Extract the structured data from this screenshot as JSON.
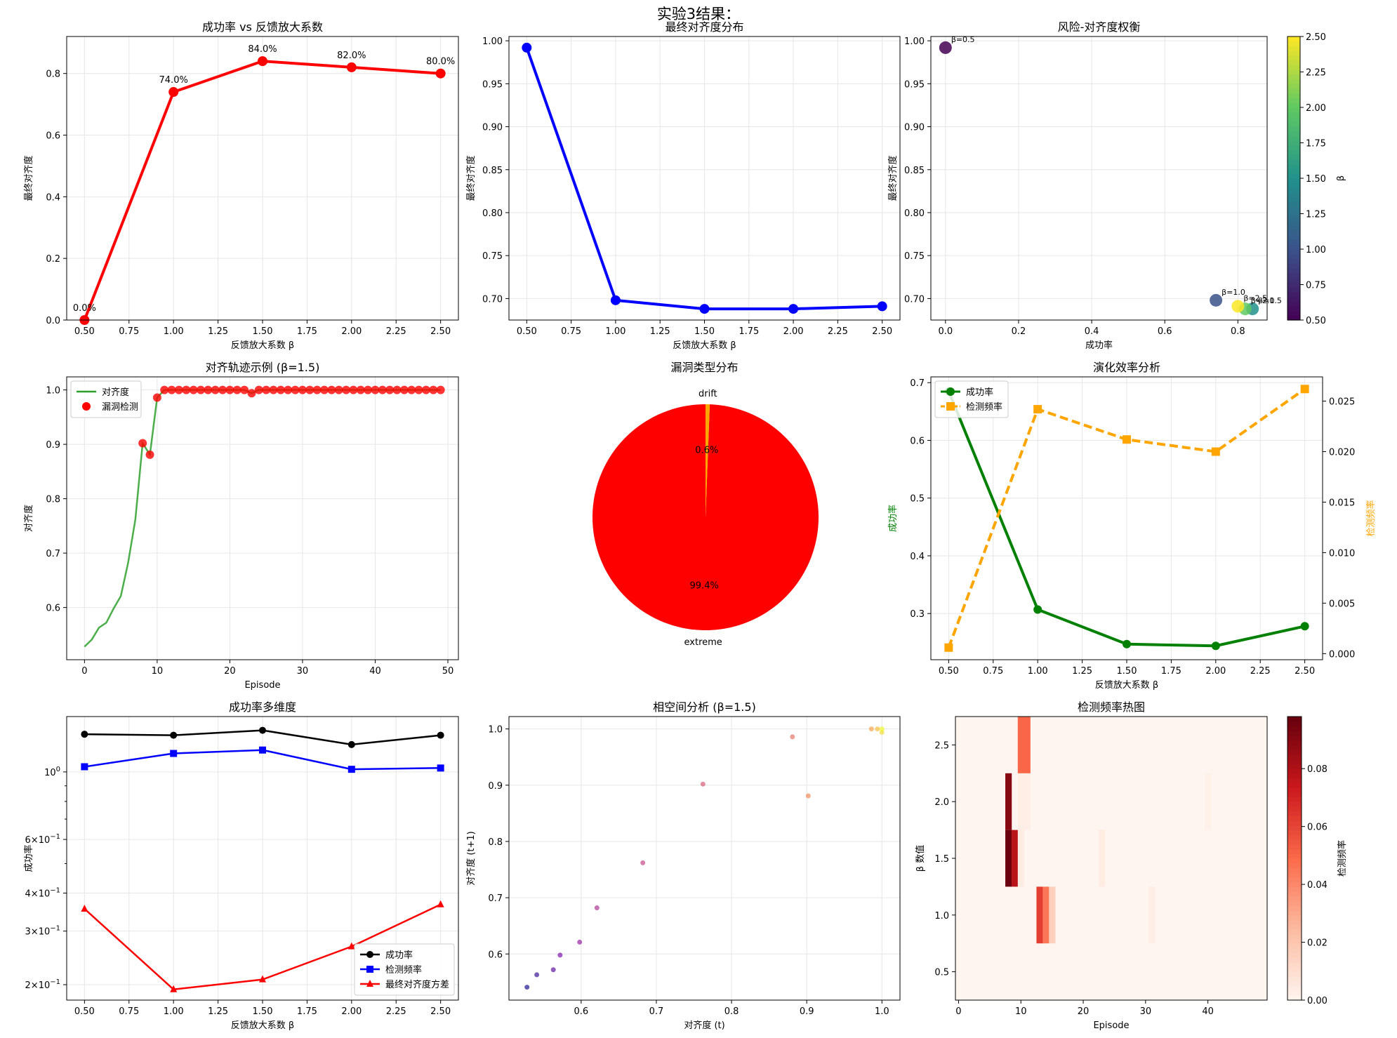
{
  "figure": {
    "suptitle": "实验3结果："
  },
  "chart_data": [
    {
      "type": "line",
      "title": "成功率 vs 反馈放大系数",
      "xlabel": "反馈放大系数 β",
      "ylabel": "最终对齐度",
      "x": [
        0.5,
        1.0,
        1.5,
        2.0,
        2.5
      ],
      "series": [
        {
          "values": [
            0.0,
            0.74,
            0.84,
            0.82,
            0.8
          ],
          "color": "#ff0000"
        }
      ],
      "data_labels": [
        "0.0%",
        "74.0%",
        "84.0%",
        "82.0%",
        "80.0%"
      ],
      "xlim": [
        0.4,
        2.6
      ],
      "ylim": [
        0,
        0.92
      ],
      "xticks": [
        "0.50",
        "0.75",
        "1.00",
        "1.25",
        "1.50",
        "1.75",
        "2.00",
        "2.25",
        "2.50"
      ],
      "yticks": [
        "0.0",
        "0.2",
        "0.4",
        "0.6",
        "0.8"
      ],
      "grid": true
    },
    {
      "type": "line",
      "title": "最终对齐度分布",
      "xlabel": "反馈放大系数 β",
      "ylabel": "最终对齐度",
      "x": [
        0.5,
        1.0,
        1.5,
        2.0,
        2.5
      ],
      "series": [
        {
          "values": [
            0.992,
            0.698,
            0.688,
            0.688,
            0.691
          ],
          "color": "#0000ff"
        }
      ],
      "xlim": [
        0.4,
        2.6
      ],
      "ylim": [
        0.675,
        1.005
      ],
      "xticks": [
        "0.50",
        "0.75",
        "1.00",
        "1.25",
        "1.50",
        "1.75",
        "2.00",
        "2.25",
        "2.50"
      ],
      "yticks": [
        "0.70",
        "0.75",
        "0.80",
        "0.85",
        "0.90",
        "0.95",
        "1.00"
      ],
      "grid": true
    },
    {
      "type": "scatter",
      "title": "风险-对齐度权衡",
      "xlabel": "成功率",
      "ylabel": "最终对齐度",
      "points": [
        {
          "x": 0.0,
          "y": 0.992,
          "beta": 0.5,
          "label": "β=0.5"
        },
        {
          "x": 0.74,
          "y": 0.698,
          "beta": 1.0,
          "label": "β=1.0"
        },
        {
          "x": 0.84,
          "y": 0.688,
          "beta": 1.5,
          "label": "β=1.5"
        },
        {
          "x": 0.82,
          "y": 0.688,
          "beta": 2.0,
          "label": "β=2.0"
        },
        {
          "x": 0.8,
          "y": 0.691,
          "beta": 2.5,
          "label": "β=2.5"
        }
      ],
      "xlim": [
        -0.04,
        0.88
      ],
      "ylim": [
        0.675,
        1.005
      ],
      "xticks": [
        "0.0",
        "0.2",
        "0.4",
        "0.6",
        "0.8"
      ],
      "yticks": [
        "0.70",
        "0.75",
        "0.80",
        "0.85",
        "0.90",
        "0.95",
        "1.00"
      ],
      "colorbar": {
        "label": "β",
        "min": 0.5,
        "max": 2.5,
        "ticks": [
          "0.50",
          "0.75",
          "1.00",
          "1.25",
          "1.50",
          "1.75",
          "2.00",
          "2.25",
          "2.50"
        ],
        "colormap": "viridis"
      },
      "grid": true
    },
    {
      "type": "line",
      "title": "对齐轨迹示例 (β=1.5)",
      "xlabel": "Episode",
      "ylabel": "对齐度",
      "legend": [
        "对齐度",
        "漏洞检测"
      ],
      "legend_position": "top-left",
      "line_values": [
        0.528,
        0.541,
        0.563,
        0.572,
        0.598,
        0.621,
        0.682,
        0.762,
        0.902,
        0.881,
        0.986,
        1.0,
        1.0,
        1.0,
        1.0,
        1.0,
        1.0,
        1.0,
        1.0,
        1.0,
        1.0,
        1.0,
        1.0,
        0.994,
        1.0,
        1.0,
        1.0,
        1.0,
        1.0,
        1.0,
        1.0,
        1.0,
        1.0,
        1.0,
        1.0,
        1.0,
        1.0,
        1.0,
        1.0,
        1.0,
        1.0,
        1.0,
        1.0,
        1.0,
        1.0,
        1.0,
        1.0,
        1.0,
        1.0,
        1.0
      ],
      "detections": [
        {
          "x": 8,
          "y": 0.902
        },
        {
          "x": 9,
          "y": 0.881
        },
        {
          "x": 10,
          "y": 0.986
        },
        {
          "x": 11,
          "y": 1.0
        },
        {
          "x": 12,
          "y": 1.0
        },
        {
          "x": 13,
          "y": 1.0
        },
        {
          "x": 14,
          "y": 1.0
        },
        {
          "x": 15,
          "y": 1.0
        },
        {
          "x": 16,
          "y": 1.0
        },
        {
          "x": 17,
          "y": 1.0
        },
        {
          "x": 18,
          "y": 1.0
        },
        {
          "x": 19,
          "y": 1.0
        },
        {
          "x": 20,
          "y": 1.0
        },
        {
          "x": 21,
          "y": 1.0
        },
        {
          "x": 22,
          "y": 1.0
        },
        {
          "x": 23,
          "y": 0.994
        },
        {
          "x": 24,
          "y": 1.0
        },
        {
          "x": 25,
          "y": 1.0
        },
        {
          "x": 26,
          "y": 1.0
        },
        {
          "x": 27,
          "y": 1.0
        },
        {
          "x": 28,
          "y": 1.0
        },
        {
          "x": 29,
          "y": 1.0
        },
        {
          "x": 30,
          "y": 1.0
        },
        {
          "x": 31,
          "y": 1.0
        },
        {
          "x": 32,
          "y": 1.0
        },
        {
          "x": 33,
          "y": 1.0
        },
        {
          "x": 34,
          "y": 1.0
        },
        {
          "x": 35,
          "y": 1.0
        },
        {
          "x": 36,
          "y": 1.0
        },
        {
          "x": 37,
          "y": 1.0
        },
        {
          "x": 38,
          "y": 1.0
        },
        {
          "x": 39,
          "y": 1.0
        },
        {
          "x": 40,
          "y": 1.0
        },
        {
          "x": 41,
          "y": 1.0
        },
        {
          "x": 42,
          "y": 1.0
        },
        {
          "x": 43,
          "y": 1.0
        },
        {
          "x": 44,
          "y": 1.0
        },
        {
          "x": 45,
          "y": 1.0
        },
        {
          "x": 46,
          "y": 1.0
        },
        {
          "x": 47,
          "y": 1.0
        },
        {
          "x": 48,
          "y": 1.0
        },
        {
          "x": 49,
          "y": 1.0
        }
      ],
      "xlim": [
        -2.45,
        51.45
      ],
      "ylim": [
        0.504,
        1.024
      ],
      "xticks": [
        "0",
        "10",
        "20",
        "30",
        "40",
        "50"
      ],
      "yticks": [
        "0.6",
        "0.7",
        "0.8",
        "0.9",
        "1.0"
      ],
      "grid": true
    },
    {
      "type": "pie",
      "title": "漏洞类型分布",
      "slices": [
        {
          "label": "extreme",
          "value": 99.4,
          "pct": "99.4%",
          "color": "#ff0000"
        },
        {
          "label": "drift",
          "value": 0.6,
          "pct": "0.6%",
          "color": "#ffa500"
        }
      ]
    },
    {
      "type": "line",
      "title": "演化效率分析",
      "xlabel": "反馈放大系数 β",
      "ylabel": "成功率",
      "ylabel_right": "检测频率",
      "legend": [
        "成功率",
        "检测频率"
      ],
      "legend_position": "top-left",
      "x": [
        0.5,
        1.0,
        1.5,
        2.0,
        2.5
      ],
      "series": [
        {
          "name": "成功率",
          "values": [
            0.685,
            0.307,
            0.247,
            0.244,
            0.278
          ],
          "color": "#008000",
          "axis": "left"
        },
        {
          "name": "检测频率",
          "values": [
            0.0006,
            0.0242,
            0.0212,
            0.02,
            0.0262
          ],
          "color": "#ffa500",
          "axis": "right"
        }
      ],
      "xlim": [
        0.4,
        2.6
      ],
      "ylim": [
        0.22,
        0.71
      ],
      "ylim_right": [
        -0.0006,
        0.0274
      ],
      "xticks": [
        "0.50",
        "0.75",
        "1.00",
        "1.25",
        "1.50",
        "1.75",
        "2.00",
        "2.25",
        "2.50"
      ],
      "yticks": [
        "0.3",
        "0.4",
        "0.5",
        "0.6",
        "0.7"
      ],
      "yticks_right": [
        "0.000",
        "0.005",
        "0.010",
        "0.015",
        "0.020",
        "0.025"
      ],
      "grid": true
    },
    {
      "type": "line",
      "title": "成功率多维度",
      "xlabel": "反馈放大系数 β",
      "ylabel": "成功率",
      "yscale": "log",
      "legend": [
        "成功率",
        "检测频率",
        "最终对齐度方差"
      ],
      "legend_position": "lower-right",
      "x": [
        0.5,
        1.0,
        1.5,
        2.0,
        2.5
      ],
      "series": [
        {
          "name": "成功率",
          "values": [
            1.33,
            1.32,
            1.37,
            1.23,
            1.32
          ],
          "color": "#000000",
          "marker": "circle"
        },
        {
          "name": "检测频率",
          "values": [
            1.04,
            1.15,
            1.18,
            1.02,
            1.03
          ],
          "color": "#0000ff",
          "marker": "square"
        },
        {
          "name": "最终对齐度方差",
          "values": [
            0.355,
            0.193,
            0.208,
            0.267,
            0.367
          ],
          "color": "#ff0000",
          "marker": "triangle"
        }
      ],
      "ylim": [
        0.178,
        1.52
      ],
      "xlim": [
        0.4,
        2.6
      ],
      "xticks": [
        "0.50",
        "0.75",
        "1.00",
        "1.25",
        "1.50",
        "1.75",
        "2.00",
        "2.25",
        "2.50"
      ],
      "yticks": [
        {
          "label": "10",
          "sup": "0",
          "value": 1.0
        },
        {
          "label": "6×10",
          "sup": "−1",
          "value": 0.6
        },
        {
          "label": "4×10",
          "sup": "−1",
          "value": 0.4
        },
        {
          "label": "3×10",
          "sup": "−1",
          "value": 0.3
        },
        {
          "label": "2×10",
          "sup": "−1",
          "value": 0.2
        }
      ],
      "grid": true
    },
    {
      "type": "scatter",
      "title": "相空间分析 (β=1.5)",
      "xlabel": "对齐度 (t)",
      "ylabel": "对齐度 (t+1)",
      "points": [
        {
          "x": 0.528,
          "y": 0.541
        },
        {
          "x": 0.541,
          "y": 0.563
        },
        {
          "x": 0.563,
          "y": 0.572
        },
        {
          "x": 0.572,
          "y": 0.598
        },
        {
          "x": 0.598,
          "y": 0.621
        },
        {
          "x": 0.621,
          "y": 0.682
        },
        {
          "x": 0.682,
          "y": 0.762
        },
        {
          "x": 0.762,
          "y": 0.902
        },
        {
          "x": 0.881,
          "y": 0.986
        },
        {
          "x": 0.902,
          "y": 0.881
        },
        {
          "x": 0.986,
          "y": 1.0
        },
        {
          "x": 0.994,
          "y": 1.0
        },
        {
          "x": 1.0,
          "y": 0.994
        },
        {
          "x": 1.0,
          "y": 1.0
        }
      ],
      "colormap": "plasma",
      "xlim": [
        0.504,
        1.024
      ],
      "ylim": [
        0.518,
        1.022
      ],
      "xticks": [
        "0.6",
        "0.7",
        "0.8",
        "0.9",
        "1.0"
      ],
      "yticks": [
        "0.6",
        "0.7",
        "0.8",
        "0.9",
        "1.0"
      ],
      "grid": true
    },
    {
      "type": "heatmap",
      "title": "检测频率热图",
      "xlabel": "Episode",
      "ylabel": "β 数值",
      "rows": [
        {
          "beta": 0.5,
          "cells": []
        },
        {
          "beta": 1.0,
          "cells": [
            [
              13,
              0.062
            ],
            [
              14,
              0.045
            ],
            [
              15,
              0.016
            ],
            [
              31,
              0.003
            ]
          ]
        },
        {
          "beta": 1.5,
          "cells": [
            [
              8,
              0.097
            ],
            [
              9,
              0.078
            ],
            [
              10,
              0.004
            ],
            [
              23,
              0.004
            ]
          ]
        },
        {
          "beta": 2.0,
          "cells": [
            [
              8,
              0.09
            ],
            [
              10,
              0.003
            ],
            [
              11,
              0.003
            ],
            [
              40,
              0.002
            ]
          ]
        },
        {
          "beta": 2.5,
          "cells": [
            [
              10,
              0.05
            ],
            [
              11,
              0.05
            ]
          ]
        }
      ],
      "episodes": 50,
      "xticks": [
        "0",
        "10",
        "20",
        "30",
        "40"
      ],
      "yticks": [
        "0.5",
        "1.0",
        "1.5",
        "2.0",
        "2.5"
      ],
      "colorbar": {
        "label": "检测频率",
        "min": 0,
        "max": 0.098,
        "ticks": [
          "0.00",
          "0.02",
          "0.04",
          "0.06",
          "0.08"
        ],
        "colormap": "Reds"
      }
    }
  ]
}
